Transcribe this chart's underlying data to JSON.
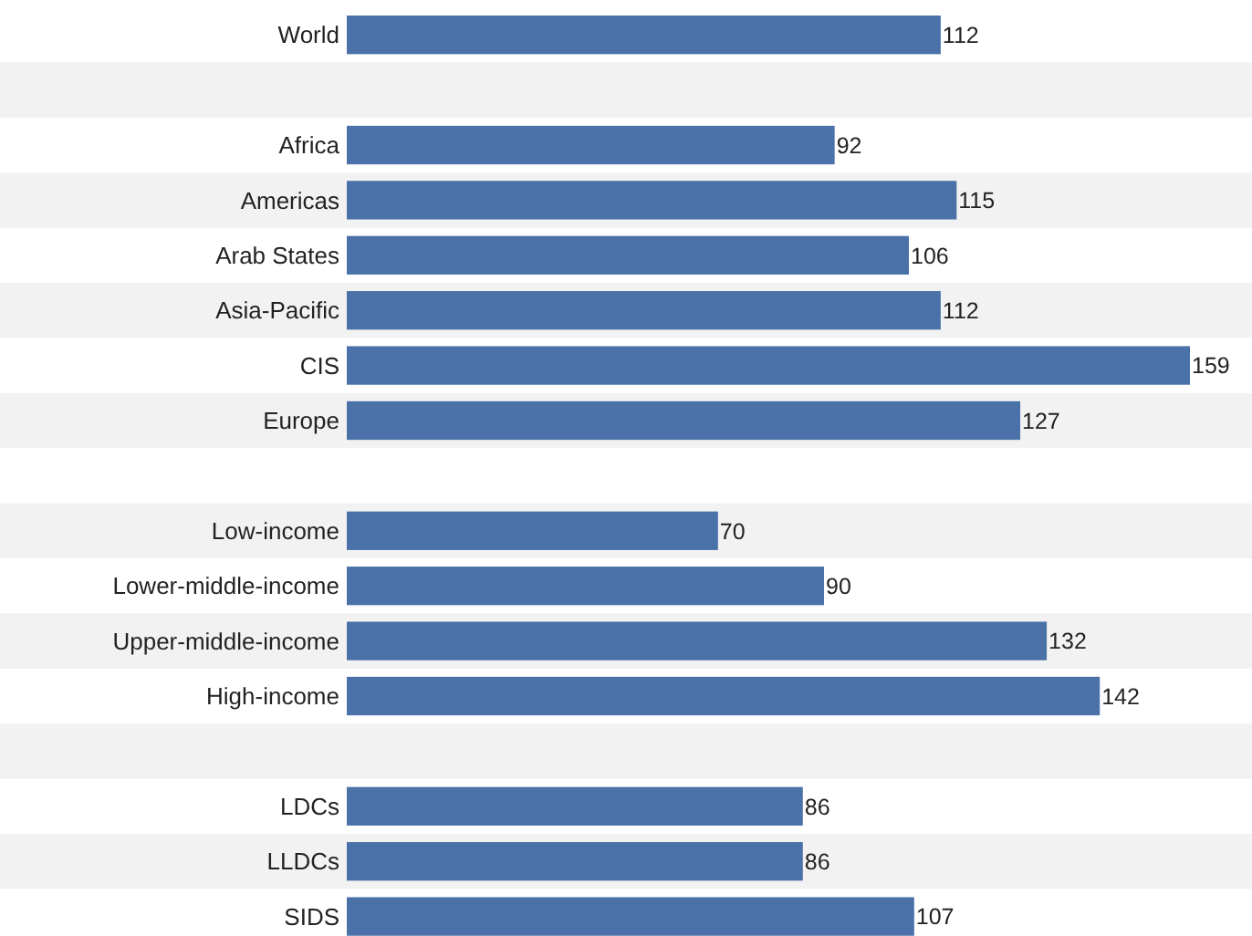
{
  "chart_data": {
    "type": "bar",
    "orientation": "horizontal",
    "categories": [
      "World",
      null,
      "Africa",
      "Americas",
      "Arab States",
      "Asia-Pacific",
      "CIS",
      "Europe",
      null,
      "Low-income",
      "Lower-middle-income",
      "Upper-middle-income",
      "High-income",
      null,
      "LDCs",
      "LLDCs",
      "SIDS"
    ],
    "values": [
      112,
      null,
      92,
      115,
      106,
      112,
      159,
      127,
      null,
      70,
      90,
      132,
      142,
      null,
      86,
      86,
      107
    ],
    "color": "#4a72a8",
    "data_labels": true
  }
}
